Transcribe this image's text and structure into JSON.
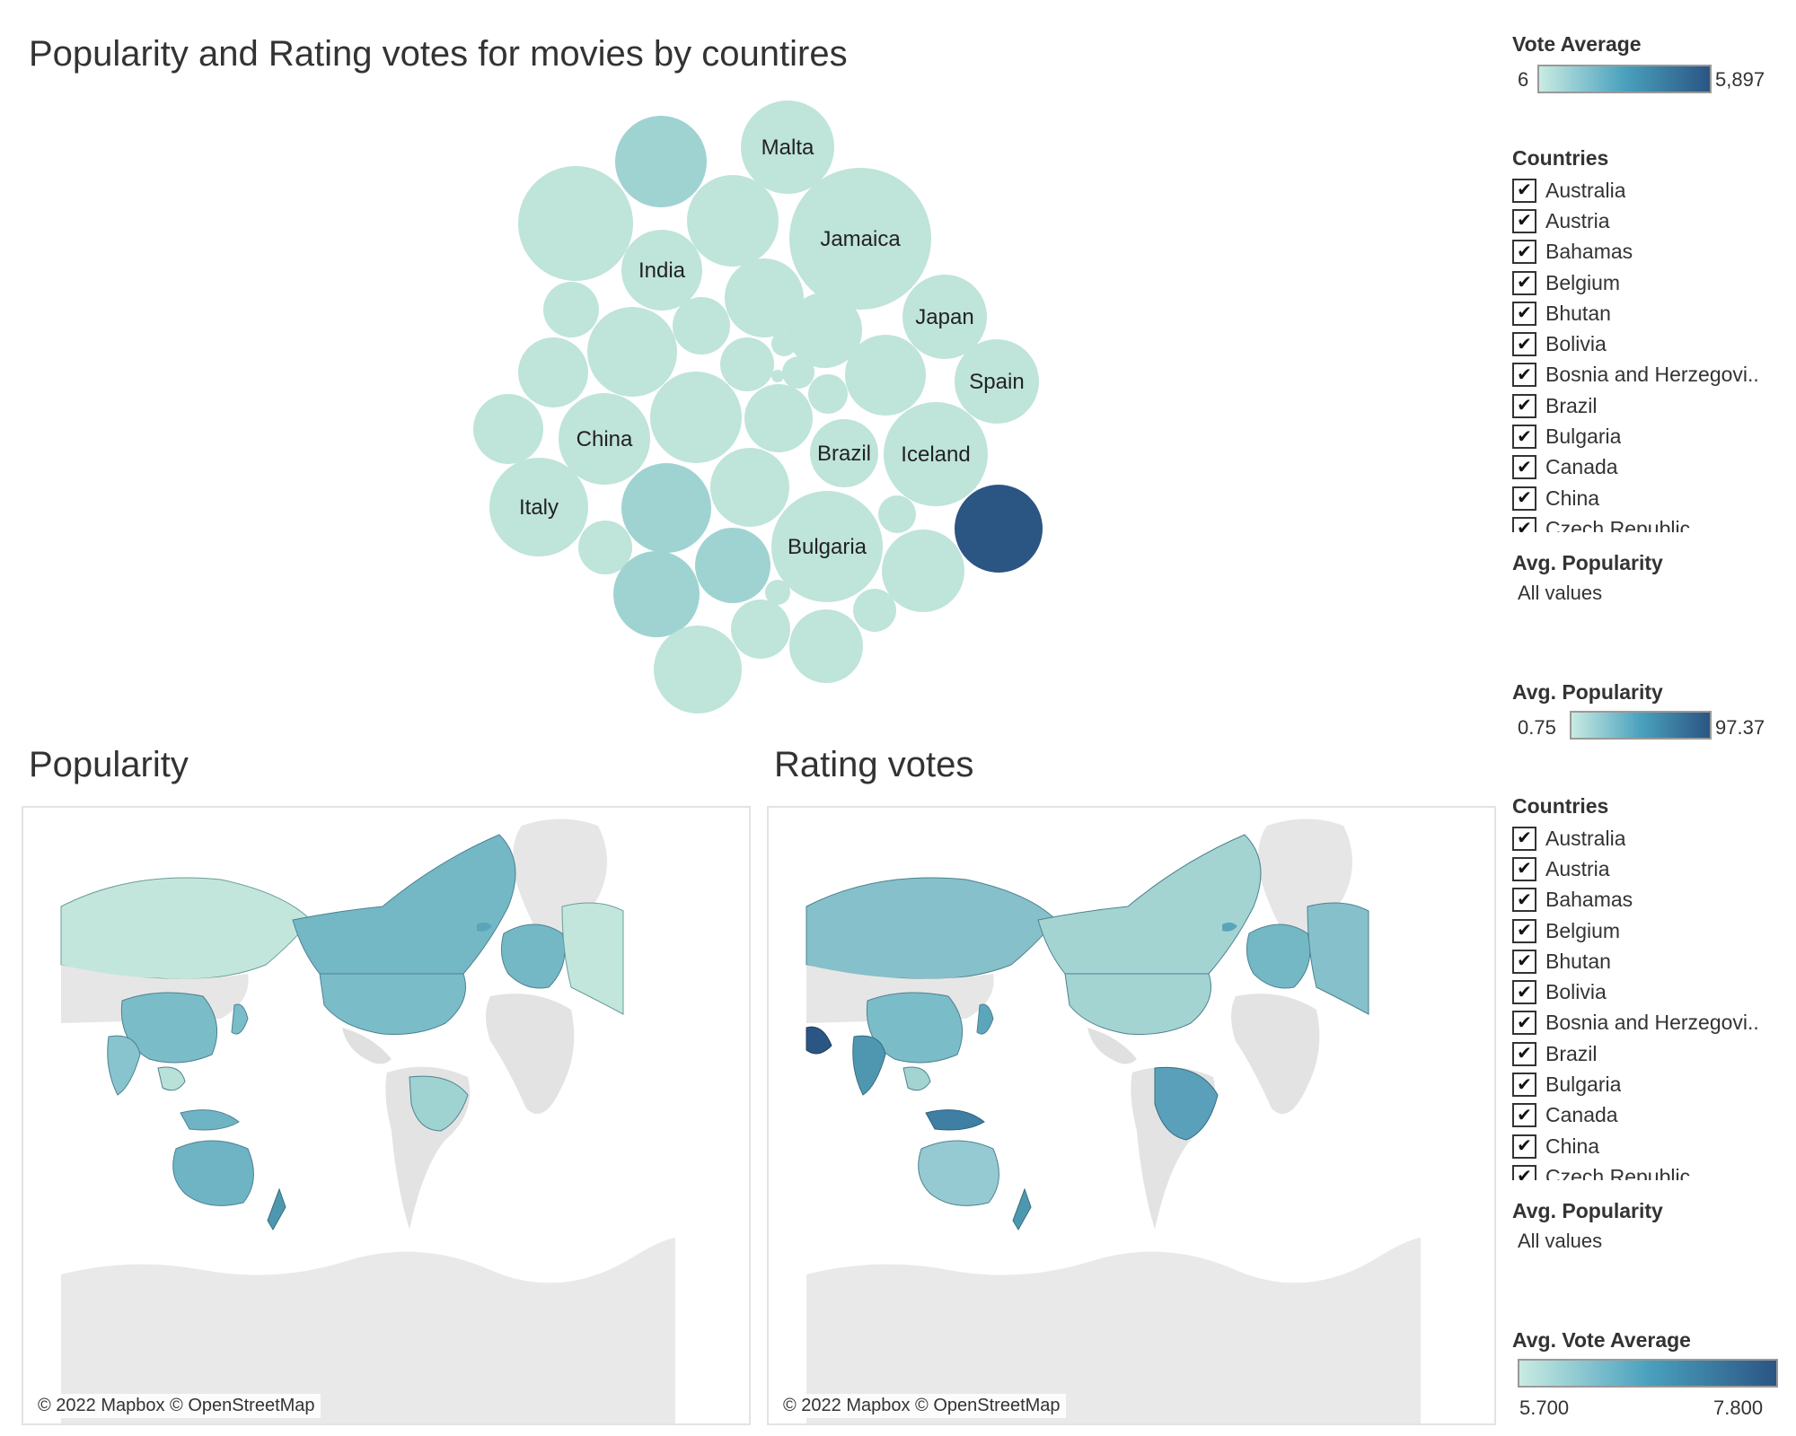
{
  "dashboard": {
    "title": "Popularity and Rating votes for movies by countires"
  },
  "bubble_chart": {
    "labels": {
      "malta": "Malta",
      "jamaica": "Jamaica",
      "india": "India",
      "japan": "Japan",
      "spain": "Spain",
      "china": "China",
      "brazil": "Brazil",
      "iceland": "Iceland",
      "italy": "Italy",
      "bulgaria": "Bulgaria"
    },
    "colors": {
      "light": "#bfe4da",
      "mid": "#9fd3d1",
      "dark": "#2b5583"
    }
  },
  "popularity_map": {
    "title": "Popularity",
    "attribution": "© 2022 Mapbox © OpenStreetMap"
  },
  "rating_map": {
    "title": "Rating votes",
    "attribution": "© 2022 Mapbox © OpenStreetMap"
  },
  "sidebar": {
    "vote_average_legend": {
      "title": "Vote Average",
      "min": "6",
      "max": "5,897"
    },
    "countries_filter_1": {
      "title": "Countries",
      "items": [
        "Australia",
        "Austria",
        "Bahamas",
        "Belgium",
        "Bhutan",
        "Bolivia",
        "Bosnia and Herzegovi..",
        "Brazil",
        "Bulgaria",
        "Canada",
        "China",
        "Czech Republic"
      ]
    },
    "avg_popularity_filter_1": {
      "title": "Avg. Popularity",
      "value": "All values"
    },
    "avg_popularity_legend": {
      "title": "Avg. Popularity",
      "min": "0.75",
      "max": "97.37"
    },
    "countries_filter_2": {
      "title": "Countries",
      "items": [
        "Australia",
        "Austria",
        "Bahamas",
        "Belgium",
        "Bhutan",
        "Bolivia",
        "Bosnia and Herzegovi..",
        "Brazil",
        "Bulgaria",
        "Canada",
        "China",
        "Czech Republic"
      ]
    },
    "avg_popularity_filter_2": {
      "title": "Avg. Popularity",
      "value": "All values"
    },
    "avg_vote_average_legend": {
      "title": "Avg. Vote Average",
      "min": "5.700",
      "max": "7.800"
    },
    "checkmark": "✔"
  }
}
